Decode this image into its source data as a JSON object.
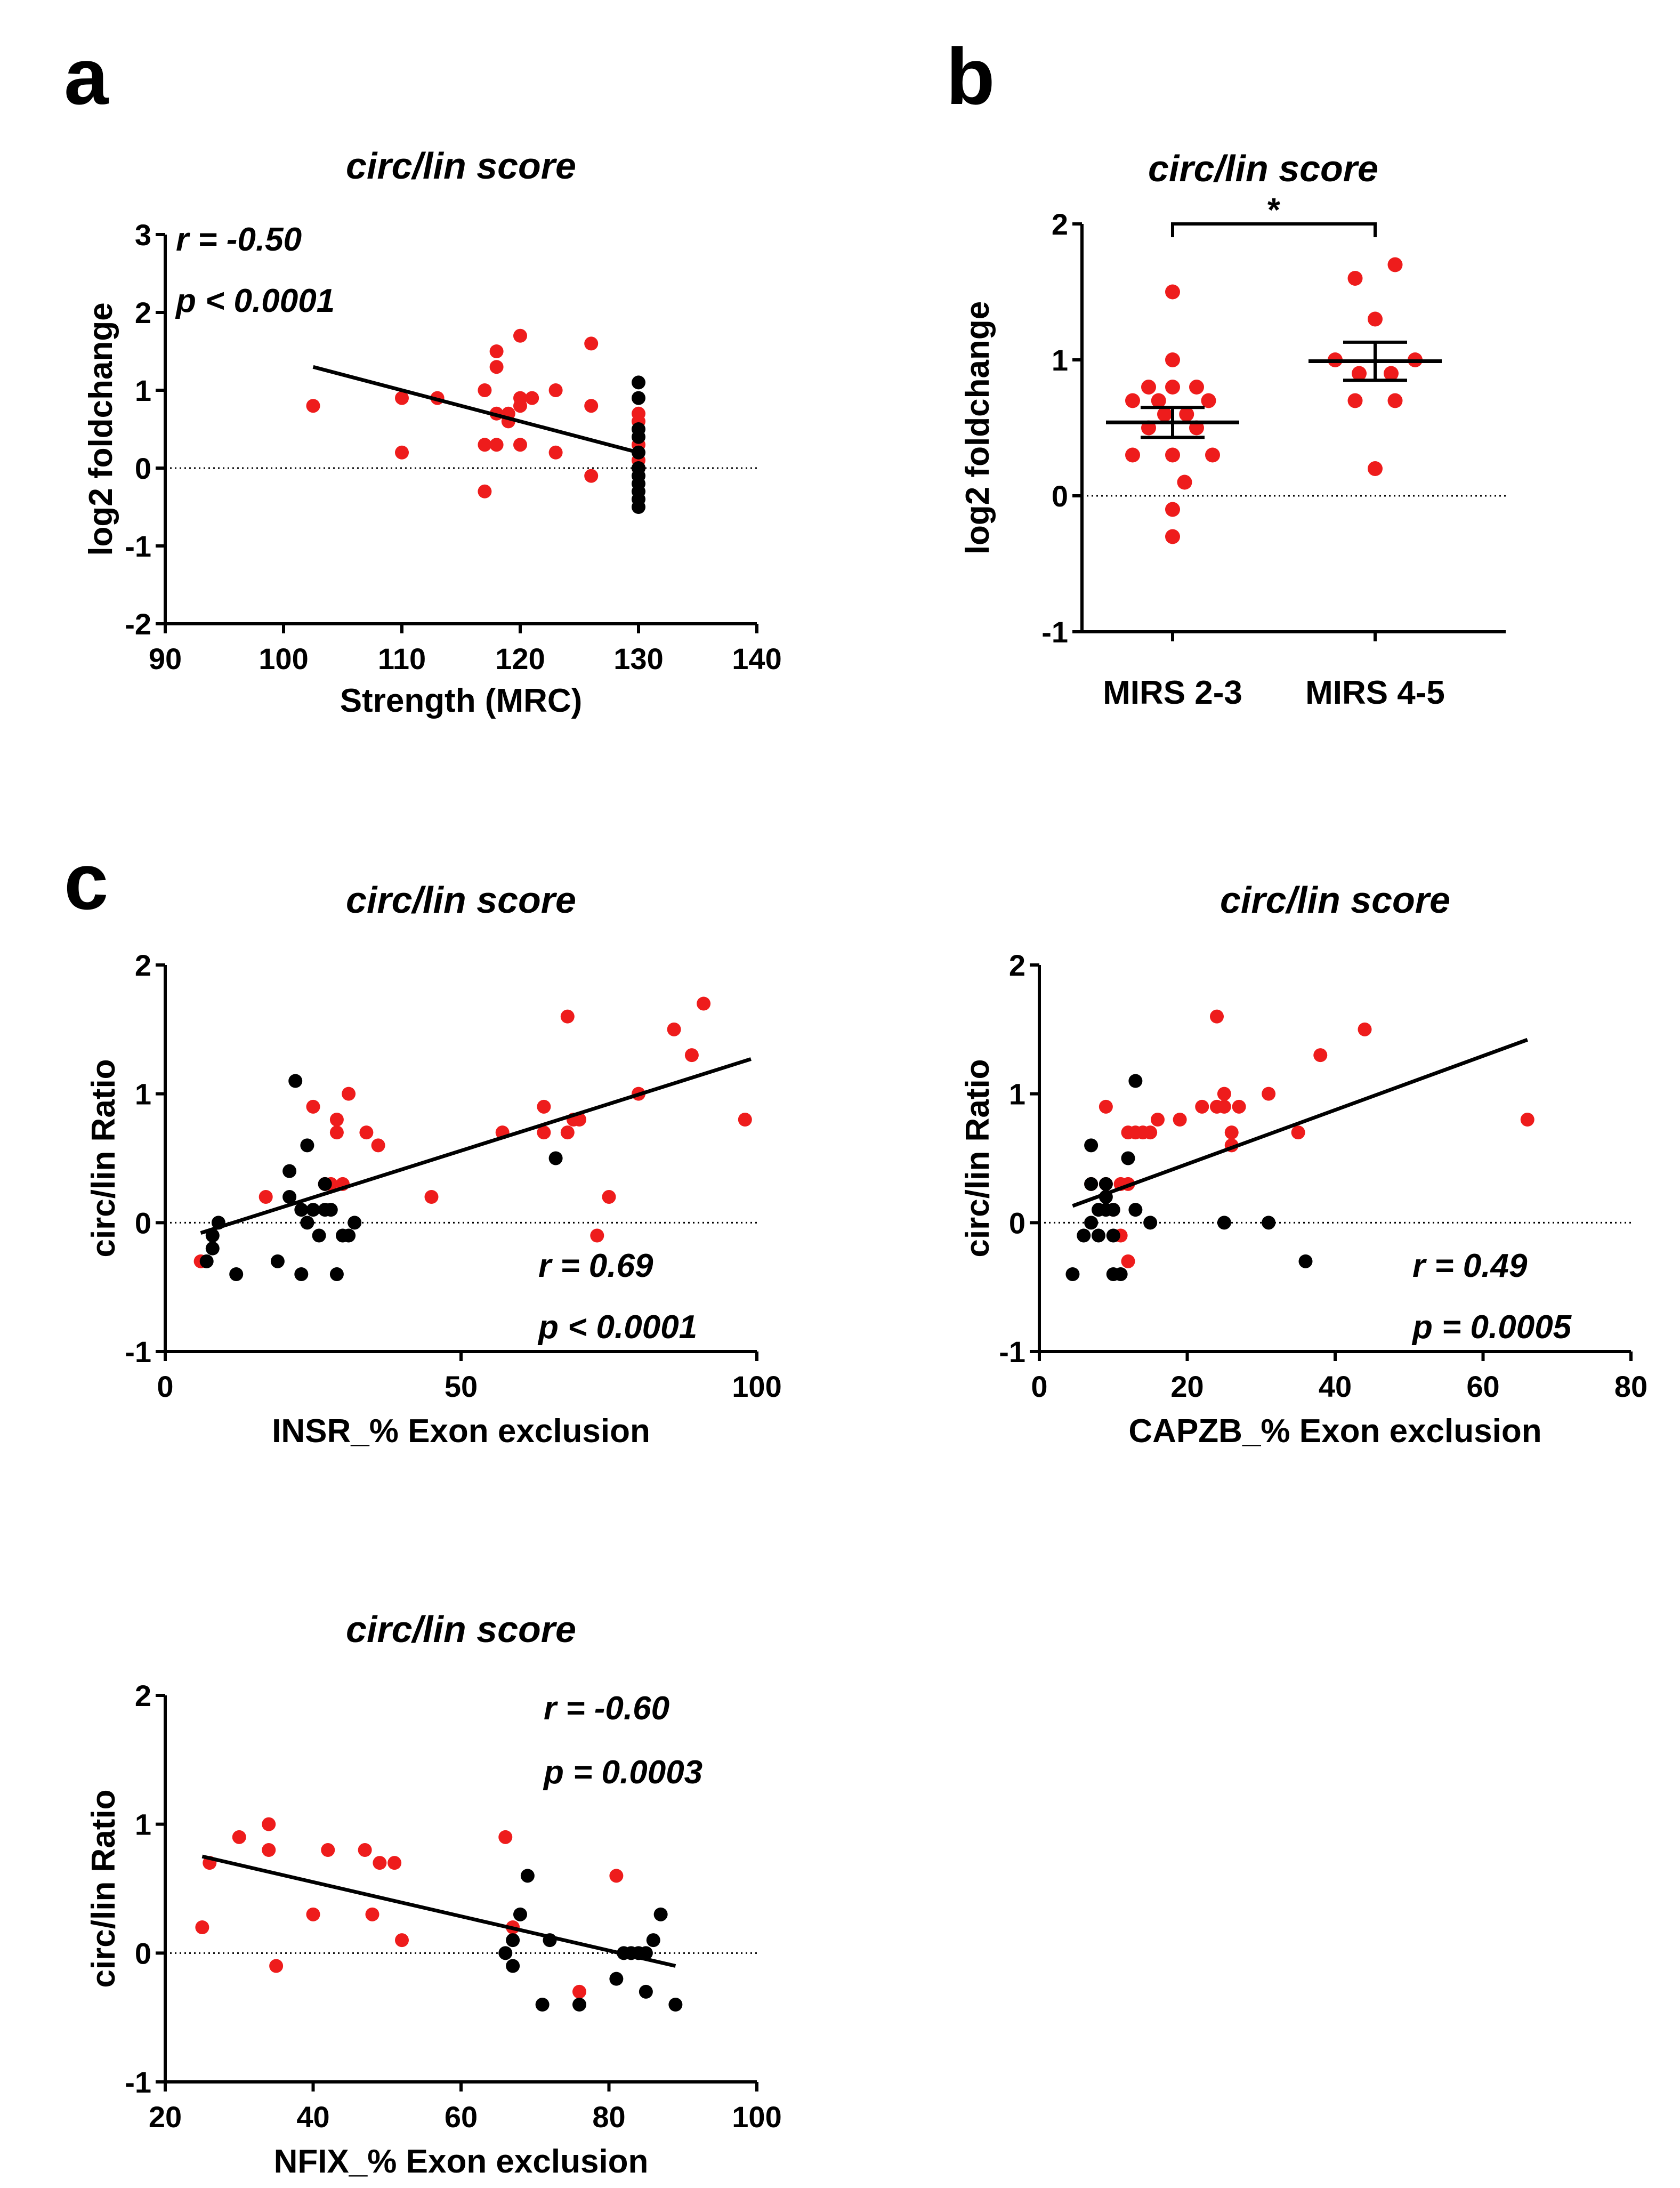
{
  "panel_letters": {
    "a": "a",
    "b": "b",
    "c": "c"
  },
  "colors": {
    "red": "#ee1c1c",
    "black": "#000000"
  },
  "chart_data": [
    {
      "id": "a",
      "type": "scatter",
      "title": "circ/lin score",
      "xlabel": "Strength (MRC)",
      "ylabel": "log2 foldchange",
      "xlim": [
        90,
        140
      ],
      "ylim": [
        -2,
        3
      ],
      "xticks": [
        90,
        100,
        110,
        120,
        130,
        140
      ],
      "yticks": [
        -2,
        -1,
        0,
        1,
        2,
        3
      ],
      "stats": {
        "r": "r = -0.50",
        "p": "p < 0.0001"
      },
      "regression": [
        [
          102.5,
          1.3
        ],
        [
          130,
          0.2
        ]
      ],
      "zero_line": true,
      "series": [
        {
          "name": "red",
          "color": "#ee1c1c",
          "points": [
            [
              102.5,
              0.8
            ],
            [
              110,
              0.9
            ],
            [
              110,
              0.2
            ],
            [
              113,
              0.9
            ],
            [
              117,
              1.0
            ],
            [
              117,
              0.3
            ],
            [
              117,
              -0.3
            ],
            [
              118,
              1.5
            ],
            [
              118,
              1.3
            ],
            [
              118,
              0.7
            ],
            [
              118,
              0.3
            ],
            [
              119,
              0.7
            ],
            [
              119,
              0.6
            ],
            [
              120,
              1.7
            ],
            [
              120,
              0.9
            ],
            [
              120,
              0.8
            ],
            [
              120,
              0.3
            ],
            [
              121,
              0.9
            ],
            [
              123,
              1.0
            ],
            [
              123,
              0.2
            ],
            [
              126,
              1.6
            ],
            [
              126,
              0.8
            ],
            [
              126,
              -0.1
            ],
            [
              130,
              0.7
            ],
            [
              130,
              0.6
            ],
            [
              130,
              0.3
            ],
            [
              130,
              0.1
            ],
            [
              130,
              0.0
            ]
          ]
        },
        {
          "name": "black",
          "color": "#000000",
          "points": [
            [
              130,
              1.1
            ],
            [
              130,
              0.9
            ],
            [
              130,
              0.5
            ],
            [
              130,
              0.4
            ],
            [
              130,
              0.2
            ],
            [
              130,
              0.0
            ],
            [
              130,
              -0.1
            ],
            [
              130,
              -0.2
            ],
            [
              130,
              -0.3
            ],
            [
              130,
              -0.4
            ],
            [
              130,
              -0.5
            ]
          ]
        }
      ]
    },
    {
      "id": "b",
      "type": "scatter",
      "title": "circ/lin score",
      "ylabel": "log2 foldchange",
      "categories": [
        "MIRS 2-3",
        "MIRS 4-5"
      ],
      "ylim": [
        -1,
        2
      ],
      "yticks": [
        -1,
        0,
        1,
        2
      ],
      "significance": "*",
      "zero_line": true,
      "groups": [
        {
          "name": "MIRS 2-3",
          "color": "#ee1c1c",
          "mean": 0.54,
          "sem": 0.11,
          "values": [
            1.5,
            1.0,
            0.8,
            0.8,
            0.8,
            0.7,
            0.7,
            0.7,
            0.6,
            0.6,
            0.5,
            0.5,
            0.3,
            0.3,
            0.3,
            0.1,
            -0.1,
            -0.3
          ],
          "offsets": [
            0,
            0,
            -0.6,
            0,
            0.6,
            -1,
            -0.35,
            0.9,
            -0.2,
            0.35,
            -0.6,
            0.6,
            -1,
            0,
            1,
            0.3,
            0,
            0
          ]
        },
        {
          "name": "MIRS 4-5",
          "color": "#ee1c1c",
          "mean": 0.99,
          "sem": 0.14,
          "values": [
            1.7,
            1.6,
            1.3,
            1.0,
            1.0,
            0.9,
            0.9,
            0.7,
            0.7,
            0.2
          ],
          "offsets": [
            0.5,
            -0.5,
            0,
            -1,
            1,
            -0.4,
            0.4,
            -0.5,
            0.5,
            0
          ]
        }
      ]
    },
    {
      "id": "c1",
      "type": "scatter",
      "title": "circ/lin score",
      "xlabel": "INSR_% Exon exclusion",
      "ylabel": "circ/lin Ratio",
      "xlim": [
        0,
        100
      ],
      "ylim": [
        -1,
        2
      ],
      "xticks": [
        0,
        50,
        100
      ],
      "yticks": [
        -1,
        0,
        1,
        2
      ],
      "stats": {
        "r": "r = 0.69",
        "p": "p < 0.0001"
      },
      "regression": [
        [
          6,
          -0.08
        ],
        [
          99,
          1.27
        ]
      ],
      "zero_line": true,
      "series": [
        {
          "name": "red",
          "color": "#ee1c1c",
          "points": [
            [
              6,
              -0.3
            ],
            [
              17,
              0.2
            ],
            [
              25,
              0.9
            ],
            [
              27,
              0.3
            ],
            [
              28,
              0.3
            ],
            [
              29,
              0.8
            ],
            [
              29,
              0.7
            ],
            [
              30,
              0.3
            ],
            [
              31,
              1.0
            ],
            [
              34,
              0.7
            ],
            [
              36,
              0.6
            ],
            [
              45,
              0.2
            ],
            [
              57,
              0.7
            ],
            [
              64,
              0.9
            ],
            [
              64,
              0.7
            ],
            [
              68,
              1.6
            ],
            [
              68,
              0.7
            ],
            [
              69,
              0.8
            ],
            [
              70,
              0.8
            ],
            [
              73,
              -0.1
            ],
            [
              75,
              0.2
            ],
            [
              80,
              1.0
            ],
            [
              86,
              1.5
            ],
            [
              89,
              1.3
            ],
            [
              91,
              1.7
            ],
            [
              98,
              0.8
            ]
          ]
        },
        {
          "name": "black",
          "color": "#000000",
          "points": [
            [
              7,
              -0.3
            ],
            [
              8,
              -0.2
            ],
            [
              8,
              -0.1
            ],
            [
              9,
              0.0
            ],
            [
              12,
              -0.4
            ],
            [
              19,
              -0.3
            ],
            [
              21,
              0.4
            ],
            [
              21,
              0.2
            ],
            [
              22,
              1.1
            ],
            [
              23,
              0.1
            ],
            [
              23,
              -0.4
            ],
            [
              24,
              0.6
            ],
            [
              24,
              0.0
            ],
            [
              25,
              0.1
            ],
            [
              26,
              -0.1
            ],
            [
              27,
              0.3
            ],
            [
              27,
              0.1
            ],
            [
              28,
              0.1
            ],
            [
              29,
              -0.4
            ],
            [
              30,
              -0.1
            ],
            [
              31,
              -0.1
            ],
            [
              32,
              0.0
            ],
            [
              66,
              0.5
            ]
          ]
        }
      ]
    },
    {
      "id": "c2",
      "type": "scatter",
      "title": "circ/lin score",
      "xlabel": "CAPZB_% Exon exclusion",
      "ylabel": "circ/lin Ratio",
      "xlim": [
        0,
        80
      ],
      "ylim": [
        -1,
        2
      ],
      "xticks": [
        0,
        20,
        40,
        60,
        80
      ],
      "yticks": [
        -1,
        0,
        1,
        2
      ],
      "stats": {
        "r": "r = 0.49",
        "p": "p = 0.0005"
      },
      "regression": [
        [
          4.5,
          0.13
        ],
        [
          66,
          1.42
        ]
      ],
      "zero_line": true,
      "series": [
        {
          "name": "red",
          "color": "#ee1c1c",
          "points": [
            [
              7,
              0.3
            ],
            [
              9,
              0.9
            ],
            [
              9,
              0.3
            ],
            [
              10,
              0.1
            ],
            [
              11,
              -0.1
            ],
            [
              11,
              0.3
            ],
            [
              12,
              0.7
            ],
            [
              12,
              0.3
            ],
            [
              12,
              -0.3
            ],
            [
              13,
              0.7
            ],
            [
              14,
              0.7
            ],
            [
              15,
              0.7
            ],
            [
              16,
              0.8
            ],
            [
              19,
              0.8
            ],
            [
              22,
              0.9
            ],
            [
              24,
              1.6
            ],
            [
              24,
              0.9
            ],
            [
              25,
              1.0
            ],
            [
              25,
              0.9
            ],
            [
              26,
              0.7
            ],
            [
              26,
              0.6
            ],
            [
              27,
              0.9
            ],
            [
              31,
              1.0
            ],
            [
              35,
              0.7
            ],
            [
              38,
              1.3
            ],
            [
              44,
              1.5
            ],
            [
              66,
              0.8
            ]
          ]
        },
        {
          "name": "black",
          "color": "#000000",
          "points": [
            [
              4.5,
              -0.4
            ],
            [
              6,
              -0.1
            ],
            [
              7,
              0.6
            ],
            [
              7,
              0.3
            ],
            [
              7,
              0.0
            ],
            [
              8,
              0.1
            ],
            [
              8,
              -0.1
            ],
            [
              9,
              0.3
            ],
            [
              9,
              0.1
            ],
            [
              9,
              0.2
            ],
            [
              10,
              0.1
            ],
            [
              10,
              -0.1
            ],
            [
              10,
              -0.4
            ],
            [
              11,
              -0.4
            ],
            [
              12,
              0.5
            ],
            [
              13,
              1.1
            ],
            [
              13,
              0.1
            ],
            [
              15,
              0.0
            ],
            [
              25,
              0.0
            ],
            [
              31,
              0.0
            ],
            [
              36,
              -0.3
            ]
          ]
        }
      ]
    },
    {
      "id": "c3",
      "type": "scatter",
      "title": "circ/lin score",
      "xlabel": "NFIX_% Exon exclusion",
      "ylabel": "circ/lin Ratio",
      "xlim": [
        20,
        100
      ],
      "ylim": [
        -1,
        2
      ],
      "xticks": [
        20,
        40,
        60,
        80,
        100
      ],
      "yticks": [
        -1,
        0,
        1,
        2
      ],
      "stats": {
        "r": "r = -0.60",
        "p": "p = 0.0003"
      },
      "regression": [
        [
          25,
          0.75
        ],
        [
          89,
          -0.1
        ]
      ],
      "zero_line": true,
      "series": [
        {
          "name": "red",
          "color": "#ee1c1c",
          "points": [
            [
              25,
              0.2
            ],
            [
              26,
              0.7
            ],
            [
              30,
              0.9
            ],
            [
              34,
              1.0
            ],
            [
              34,
              0.8
            ],
            [
              35,
              -0.1
            ],
            [
              40,
              0.3
            ],
            [
              42,
              0.8
            ],
            [
              47,
              0.8
            ],
            [
              48,
              0.3
            ],
            [
              49,
              0.7
            ],
            [
              51,
              0.7
            ],
            [
              52,
              0.1
            ],
            [
              66,
              0.9
            ],
            [
              67,
              0.2
            ],
            [
              76,
              -0.3
            ],
            [
              81,
              0.6
            ]
          ]
        },
        {
          "name": "black",
          "color": "#000000",
          "points": [
            [
              66,
              0.0
            ],
            [
              67,
              -0.1
            ],
            [
              67,
              0.1
            ],
            [
              68,
              0.3
            ],
            [
              69,
              0.6
            ],
            [
              71,
              -0.4
            ],
            [
              72,
              0.1
            ],
            [
              76,
              -0.4
            ],
            [
              81,
              -0.2
            ],
            [
              82,
              0.0
            ],
            [
              83,
              0.0
            ],
            [
              84,
              0.0
            ],
            [
              85,
              -0.3
            ],
            [
              85,
              0.0
            ],
            [
              86,
              0.1
            ],
            [
              87,
              0.3
            ],
            [
              89,
              -0.4
            ]
          ]
        }
      ]
    }
  ]
}
